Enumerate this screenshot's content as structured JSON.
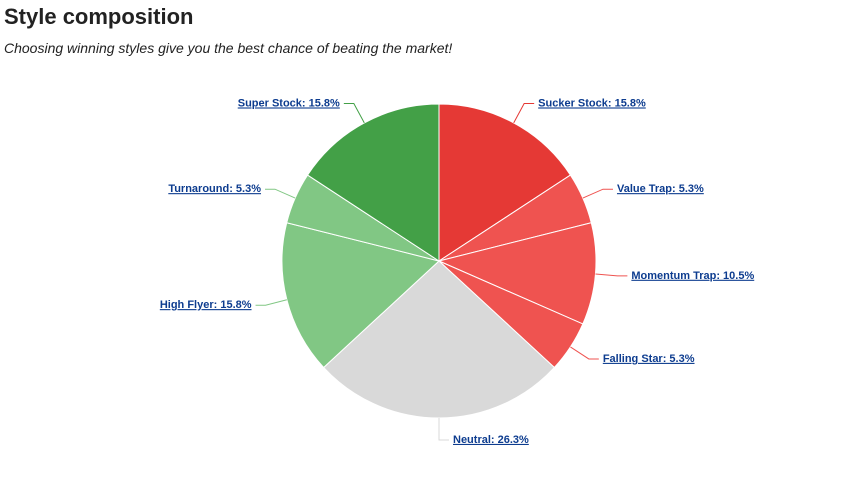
{
  "title": "Style composition",
  "subtitle": "Choosing winning styles give you the best chance of beating the market!",
  "chart_data": {
    "type": "pie",
    "values": [
      15.8,
      5.3,
      10.5,
      5.3,
      26.3,
      15.8,
      5.3,
      15.8
    ],
    "value_labels": [
      "Sucker Stock: 15.8%",
      "Value Trap: 5.3%",
      "Momentum Trap: 10.5%",
      "Falling Star: 5.3%",
      "Neutral: 26.3%",
      "High Flyer: 15.8%",
      "Turnaround: 5.3%",
      "Super Stock: 15.8%"
    ],
    "colors": [
      "#e53935",
      "#ef5350",
      "#ef5350",
      "#ef5350",
      "#d9d9d9",
      "#81c784",
      "#81c784",
      "#43a047"
    ]
  }
}
